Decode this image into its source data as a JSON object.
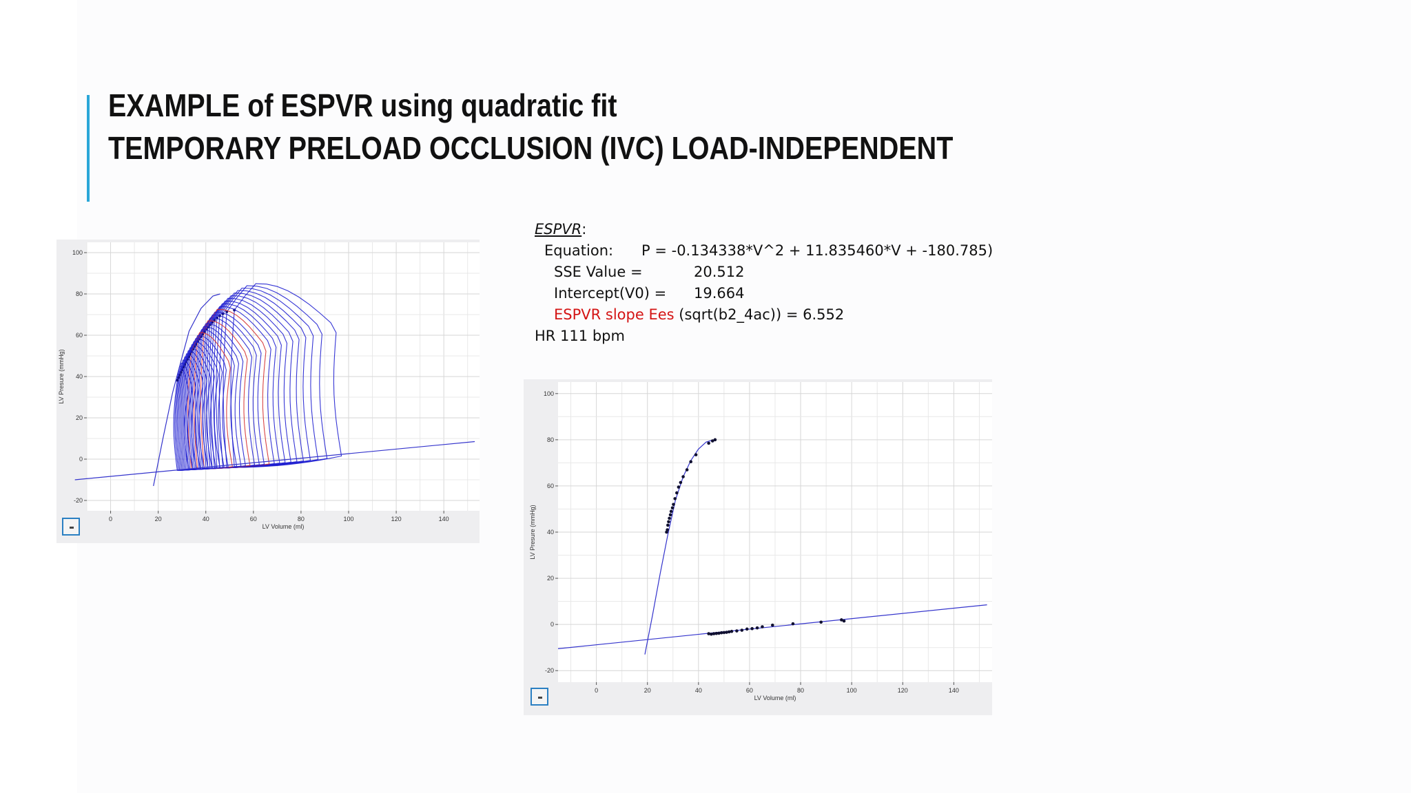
{
  "slide": {
    "title_line1": "EXAMPLE of ESPVR using quadratic fit",
    "title_line2": "TEMPORARY PRELOAD OCCLUSION (IVC) LOAD-INDEPENDENT",
    "accent_color": "#2aa7d8"
  },
  "espvr": {
    "heading": "ESPVR",
    "heading_suffix": ":",
    "equation_label": "Equation:",
    "equation_value": "P = -0.134338*V^2 + 11.835460*V + -180.785)",
    "sse_label": "SSE Value =",
    "sse_value": "20.512",
    "intercept_label": "Intercept(V0) =",
    "intercept_value": "19.664",
    "slope_label": "ESPVR slope Ees",
    "slope_formula": "(sqrt(b2_4ac)) =",
    "slope_value": "6.552",
    "hr": "HR 111 bpm",
    "highlight_color": "#d41414"
  },
  "chart_data": [
    {
      "type": "line",
      "description_key": "pv-loops",
      "xlabel": "LV Volume (ml)",
      "ylabel": "LV Presure (mmHg)",
      "xlim": [
        -10,
        155
      ],
      "ylim": [
        -25,
        105
      ],
      "xticks": [
        0,
        20,
        40,
        60,
        80,
        100,
        120,
        140
      ],
      "yticks": [
        -20,
        0,
        20,
        40,
        60,
        80,
        100
      ],
      "grid": true,
      "loop_color": "#1f1fd0",
      "highlight_loop_color": "#d43030",
      "loops": {
        "count": 30,
        "highlight_indices": [
          10,
          14,
          18
        ],
        "first_loop": {
          "edv": 97,
          "esv": 52,
          "peak": 85
        },
        "last_loop": {
          "edv": 33,
          "esv": 28,
          "peak": 45
        }
      },
      "espvr_line": [
        [
          18,
          -13
        ],
        [
          22,
          10
        ],
        [
          26,
          32
        ],
        [
          29,
          45
        ],
        [
          33,
          62
        ],
        [
          38,
          73
        ],
        [
          43,
          79
        ],
        [
          46,
          80
        ]
      ],
      "edpvr_line": [
        [
          -15,
          -10
        ],
        [
          153,
          8.5
        ]
      ]
    },
    {
      "type": "scatter",
      "description_key": "espvr-edpvr-fit",
      "xlabel": "LV Volume (ml)",
      "ylabel": "LV Presure (mmHg)",
      "xlim": [
        -15,
        155
      ],
      "ylim": [
        -25,
        105
      ],
      "xticks": [
        0,
        20,
        40,
        60,
        80,
        100,
        120,
        140
      ],
      "yticks": [
        -20,
        0,
        20,
        40,
        60,
        80,
        100
      ],
      "grid": true,
      "point_color": "#101030",
      "line_color": "#3333cc",
      "series": [
        {
          "name": "",
          "points": [
            [
              27.5,
              40
            ],
            [
              27.8,
              41
            ],
            [
              28,
              43
            ],
            [
              28.3,
              44.5
            ],
            [
              28.6,
              46
            ],
            [
              29,
              47.5
            ],
            [
              29.3,
              49
            ],
            [
              29.8,
              50.5
            ],
            [
              30.2,
              52
            ],
            [
              30.8,
              54.5
            ],
            [
              31.5,
              57
            ],
            [
              32.2,
              59.5
            ],
            [
              33,
              61.5
            ],
            [
              34,
              64
            ],
            [
              35.5,
              67
            ],
            [
              37,
              70.5
            ],
            [
              39,
              73.5
            ],
            [
              44,
              78.5
            ],
            [
              45.5,
              79.5
            ],
            [
              46.5,
              80
            ]
          ]
        },
        {
          "name": "",
          "points": [
            [
              44,
              -4
            ],
            [
              45,
              -4.2
            ],
            [
              46,
              -4
            ],
            [
              47,
              -3.9
            ],
            [
              48,
              -3.8
            ],
            [
              49,
              -3.6
            ],
            [
              50,
              -3.5
            ],
            [
              51,
              -3.4
            ],
            [
              52,
              -3.2
            ],
            [
              53,
              -3
            ],
            [
              55,
              -2.8
            ],
            [
              57,
              -2.5
            ],
            [
              59,
              -2
            ],
            [
              61,
              -1.8
            ],
            [
              63,
              -1.5
            ],
            [
              65,
              -1
            ],
            [
              69,
              -0.3
            ],
            [
              77,
              0.3
            ],
            [
              88,
              1
            ],
            [
              96,
              2
            ],
            [
              97,
              1.5
            ]
          ]
        }
      ],
      "fit_curve": [
        [
          19,
          -13
        ],
        [
          22,
          4
        ],
        [
          25,
          22
        ],
        [
          28,
          39
        ],
        [
          31,
          54
        ],
        [
          34,
          64
        ],
        [
          37,
          71
        ],
        [
          40,
          76
        ],
        [
          43,
          79
        ],
        [
          46,
          80
        ]
      ],
      "edpvr_line": [
        [
          -15,
          -10.5
        ],
        [
          153,
          8.5
        ]
      ]
    }
  ]
}
